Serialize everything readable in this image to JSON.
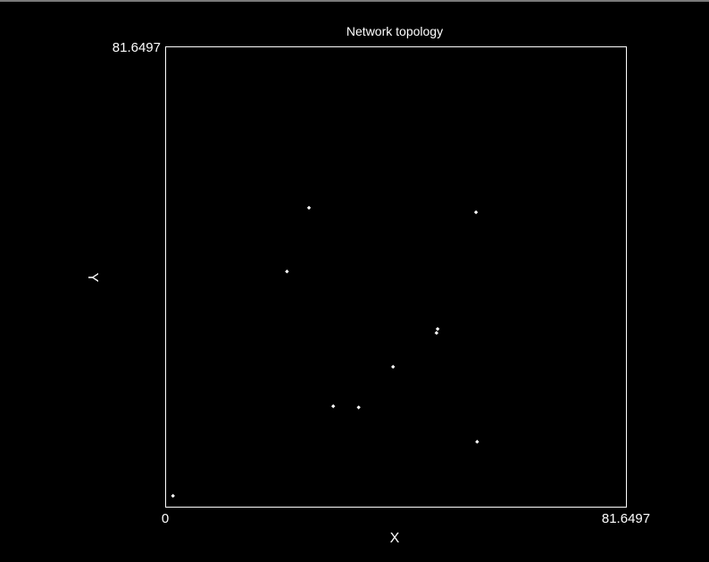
{
  "chart_data": {
    "type": "scatter",
    "title": "Network topology",
    "xlabel": "X",
    "ylabel": "Y",
    "xlim": [
      0,
      81.6497
    ],
    "ylim": [
      0,
      81.6497
    ],
    "x_tick_labels": [
      "0",
      "81.6497"
    ],
    "y_tick_labels": [
      "81.6497"
    ],
    "grid": false,
    "colors": {
      "background": "#000000",
      "foreground": "#ffffff"
    },
    "points": [
      {
        "x": 1.3,
        "y": 2.0
      },
      {
        "x": 21.5,
        "y": 41.8
      },
      {
        "x": 25.4,
        "y": 53.1
      },
      {
        "x": 29.7,
        "y": 17.9
      },
      {
        "x": 34.2,
        "y": 17.7
      },
      {
        "x": 40.3,
        "y": 24.9
      },
      {
        "x": 48.0,
        "y": 30.9
      },
      {
        "x": 48.2,
        "y": 31.6
      },
      {
        "x": 55.0,
        "y": 52.3
      },
      {
        "x": 55.2,
        "y": 11.6
      }
    ]
  }
}
